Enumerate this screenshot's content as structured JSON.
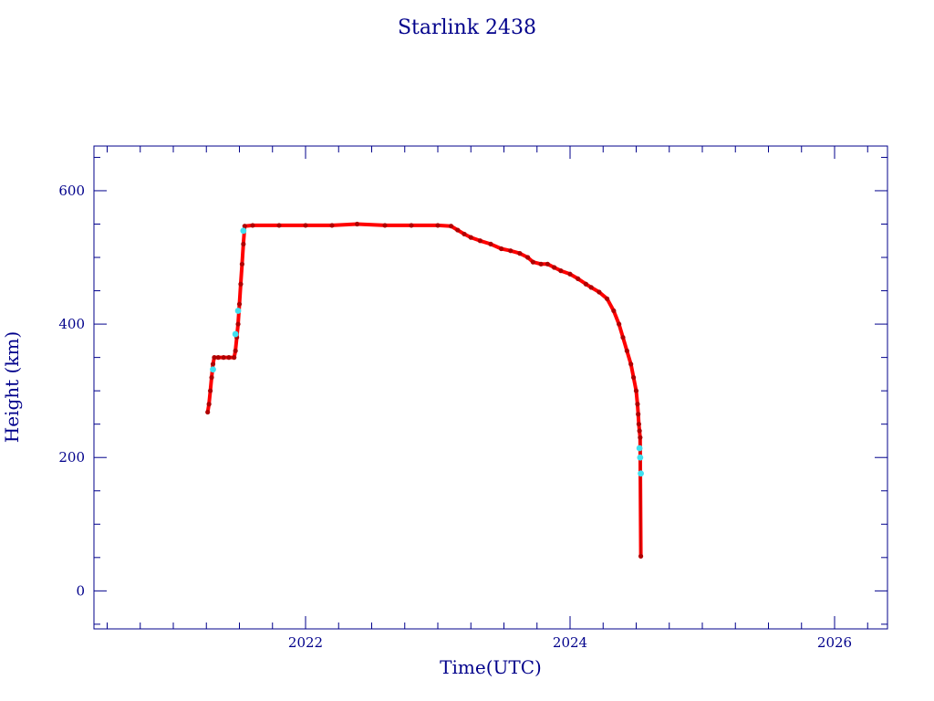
{
  "chart_data": {
    "type": "scatter",
    "title": "Starlink 2438",
    "xlabel": "Time(UTC)",
    "ylabel": "Height (km)",
    "xlim": [
      2020.4,
      2026.4
    ],
    "ylim": [
      -57,
      667
    ],
    "x_ticks": [
      2022,
      2024,
      2026
    ],
    "x_tick_labels": [
      "2022",
      "2024",
      "2026"
    ],
    "y_ticks": [
      0,
      200,
      400,
      600
    ],
    "y_tick_labels": [
      "0",
      "200",
      "400",
      "600"
    ],
    "grid": false,
    "colors": {
      "axis": "#00008b",
      "main": "#ff0000",
      "marker_dark": "#b00000",
      "highlight": "#40e0f0"
    },
    "series": [
      {
        "values": [
          [
            2021.26,
            268
          ],
          [
            2021.27,
            280
          ],
          [
            2021.28,
            300
          ],
          [
            2021.29,
            320
          ],
          [
            2021.3,
            340
          ],
          [
            2021.31,
            350
          ],
          [
            2021.34,
            350
          ],
          [
            2021.38,
            350
          ],
          [
            2021.42,
            350
          ],
          [
            2021.46,
            350
          ],
          [
            2021.47,
            360
          ],
          [
            2021.48,
            380
          ],
          [
            2021.49,
            400
          ],
          [
            2021.5,
            430
          ],
          [
            2021.51,
            460
          ],
          [
            2021.52,
            490
          ],
          [
            2021.53,
            520
          ],
          [
            2021.54,
            547
          ],
          [
            2021.6,
            548
          ],
          [
            2021.8,
            548
          ],
          [
            2022.0,
            548
          ],
          [
            2022.2,
            548
          ],
          [
            2022.39,
            550
          ],
          [
            2022.6,
            548
          ],
          [
            2022.8,
            548
          ],
          [
            2023.0,
            548
          ],
          [
            2023.1,
            547
          ],
          [
            2023.15,
            541
          ],
          [
            2023.2,
            535
          ],
          [
            2023.25,
            530
          ],
          [
            2023.32,
            525
          ],
          [
            2023.4,
            520
          ],
          [
            2023.48,
            513
          ],
          [
            2023.55,
            510
          ],
          [
            2023.62,
            506
          ],
          [
            2023.68,
            500
          ],
          [
            2023.72,
            493
          ],
          [
            2023.78,
            490
          ],
          [
            2023.83,
            490
          ],
          [
            2023.88,
            485
          ],
          [
            2023.93,
            480
          ],
          [
            2024.0,
            475
          ],
          [
            2024.06,
            468
          ],
          [
            2024.12,
            460
          ],
          [
            2024.16,
            455
          ],
          [
            2024.22,
            448
          ],
          [
            2024.28,
            438
          ],
          [
            2024.33,
            420
          ],
          [
            2024.37,
            400
          ],
          [
            2024.4,
            380
          ],
          [
            2024.43,
            360
          ],
          [
            2024.46,
            340
          ],
          [
            2024.48,
            320
          ],
          [
            2024.5,
            300
          ],
          [
            2024.51,
            280
          ],
          [
            2024.515,
            265
          ],
          [
            2024.52,
            250
          ],
          [
            2024.525,
            240
          ],
          [
            2024.53,
            230
          ],
          [
            2024.535,
            52
          ]
        ]
      },
      {
        "values": [
          [
            2021.3,
            332
          ],
          [
            2021.47,
            385
          ],
          [
            2021.49,
            420
          ],
          [
            2021.53,
            540
          ],
          [
            2024.525,
            214
          ],
          [
            2024.53,
            200
          ],
          [
            2024.535,
            176
          ]
        ]
      }
    ]
  }
}
